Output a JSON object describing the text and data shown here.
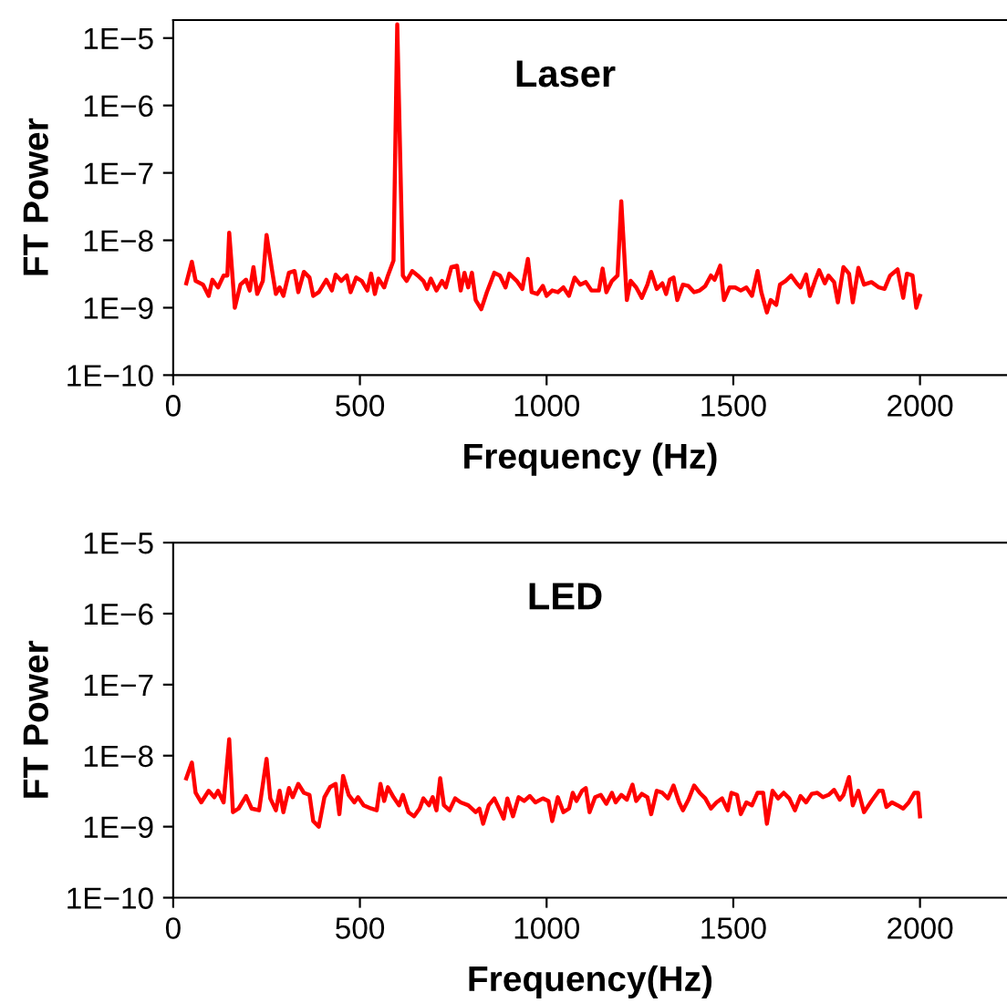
{
  "chart_data": [
    {
      "type": "line",
      "title": "Laser",
      "xlabel": "Frequency (Hz)",
      "ylabel": "FT Power",
      "log": true,
      "grid": false,
      "legend": false,
      "marker": "none",
      "line_style": "solid",
      "xlim": [
        0,
        2233
      ],
      "xticks": [
        0,
        500,
        1000,
        1500,
        2000
      ],
      "ylim": [
        1e-10,
        1.85e-05
      ],
      "yticks": [
        {
          "value": 1e-10,
          "label": "1E−10"
        },
        {
          "value": 1e-09,
          "label": "1E−9"
        },
        {
          "value": 1e-08,
          "label": "1E−8"
        },
        {
          "value": 1e-07,
          "label": "1E−7"
        },
        {
          "value": 1e-06,
          "label": "1E−6"
        },
        {
          "value": 1e-05,
          "label": "1E−5"
        }
      ],
      "series": [
        {
          "color": "#ff0000",
          "x": [
            35,
            50,
            60,
            80,
            95,
            105,
            120,
            135,
            145,
            150,
            165,
            180,
            195,
            205,
            215,
            225,
            240,
            250,
            265,
            275,
            285,
            295,
            310,
            325,
            335,
            350,
            365,
            375,
            390,
            410,
            425,
            435,
            450,
            465,
            475,
            490,
            505,
            520,
            530,
            540,
            550,
            565,
            575,
            590,
            600,
            615,
            625,
            640,
            655,
            670,
            680,
            690,
            705,
            720,
            730,
            745,
            760,
            770,
            780,
            790,
            800,
            810,
            825,
            840,
            860,
            875,
            890,
            900,
            920,
            935,
            950,
            960,
            975,
            990,
            1000,
            1015,
            1030,
            1045,
            1060,
            1075,
            1090,
            1105,
            1120,
            1140,
            1150,
            1160,
            1175,
            1190,
            1200,
            1215,
            1225,
            1240,
            1255,
            1270,
            1280,
            1295,
            1310,
            1320,
            1330,
            1340,
            1350,
            1365,
            1380,
            1395,
            1410,
            1425,
            1440,
            1450,
            1465,
            1475,
            1490,
            1505,
            1520,
            1535,
            1550,
            1565,
            1575,
            1590,
            1600,
            1615,
            1625,
            1640,
            1655,
            1670,
            1680,
            1695,
            1705,
            1720,
            1730,
            1745,
            1755,
            1770,
            1780,
            1795,
            1810,
            1820,
            1835,
            1850,
            1870,
            1890,
            1905,
            1920,
            1940,
            1955,
            1965,
            1980,
            1990,
            2000
          ],
          "values": [
            2.3e-09,
            4.8e-09,
            2.5e-09,
            2.2e-09,
            1.5e-09,
            2.6e-09,
            2e-09,
            3e-09,
            3e-09,
            1.3e-08,
            1e-09,
            2.2e-09,
            2.6e-09,
            1.8e-09,
            4e-09,
            1.6e-09,
            2.5e-09,
            1.2e-08,
            3.5e-09,
            1.6e-09,
            2e-09,
            1.5e-09,
            3.3e-09,
            3.5e-09,
            1.7e-09,
            3.4e-09,
            2.8e-09,
            1.5e-09,
            1.7e-09,
            2.6e-09,
            1.8e-09,
            3.1e-09,
            2.5e-09,
            3e-09,
            1.7e-09,
            2.8e-09,
            2.5e-09,
            1.8e-09,
            3.2e-09,
            1.6e-09,
            2.7e-09,
            2e-09,
            3e-09,
            5e-09,
            1.6e-05,
            3e-09,
            2.5e-09,
            3.5e-09,
            3e-09,
            2.5e-09,
            1.9e-09,
            2.7e-09,
            1.8e-09,
            2.5e-09,
            2e-09,
            4e-09,
            4.2e-09,
            1.8e-09,
            3.3e-09,
            2e-09,
            3.3e-09,
            1.3e-09,
            9.5e-10,
            1.7e-09,
            3.3e-09,
            3e-09,
            2e-09,
            3.2e-09,
            2.5e-09,
            1.9e-09,
            5.3e-09,
            1.7e-09,
            1.6e-09,
            2.1e-09,
            1.5e-09,
            1.8e-09,
            1.7e-09,
            2e-09,
            1.5e-09,
            2.8e-09,
            2.2e-09,
            2.4e-09,
            1.8e-09,
            1.8e-09,
            3.8e-09,
            1.7e-09,
            2.5e-09,
            3e-09,
            3.8e-08,
            1.3e-09,
            2.5e-09,
            2e-09,
            1.4e-09,
            2.2e-09,
            3.4e-09,
            1.9e-09,
            2.3e-09,
            1.6e-09,
            2.6e-09,
            2.8e-09,
            1.3e-09,
            2.2e-09,
            2.1e-09,
            1.7e-09,
            1.8e-09,
            2.1e-09,
            3e-09,
            2.6e-09,
            4.2e-09,
            1.3e-09,
            2e-09,
            2e-09,
            1.8e-09,
            2e-09,
            1.5e-09,
            3.5e-09,
            1.7e-09,
            8.5e-10,
            1.3e-09,
            1.1e-09,
            2.2e-09,
            2.5e-09,
            3e-09,
            2.3e-09,
            2e-09,
            3.1e-09,
            1.5e-09,
            2.6e-09,
            3.6e-09,
            2.3e-09,
            3e-09,
            2.4e-09,
            1.2e-09,
            4e-09,
            3.2e-09,
            1.2e-09,
            3.9e-09,
            2.2e-09,
            2.4e-09,
            2e-09,
            1.9e-09,
            3e-09,
            3.7e-09,
            1.4e-09,
            3.2e-09,
            3e-09,
            1e-09,
            1.5e-09
          ]
        }
      ]
    },
    {
      "type": "line",
      "title": "LED",
      "xlabel": "Frequency(Hz)",
      "ylabel": "FT Power",
      "log": true,
      "grid": false,
      "legend": false,
      "marker": "none",
      "line_style": "solid",
      "xlim": [
        0,
        2233
      ],
      "xticks": [
        0,
        500,
        1000,
        1500,
        2000
      ],
      "ylim": [
        1e-10,
        1e-05
      ],
      "yticks": [
        {
          "value": 1e-10,
          "label": "1E−10"
        },
        {
          "value": 1e-09,
          "label": "1E−9"
        },
        {
          "value": 1e-08,
          "label": "1E−8"
        },
        {
          "value": 1e-07,
          "label": "1E−7"
        },
        {
          "value": 1e-06,
          "label": "1E−6"
        },
        {
          "value": 1e-05,
          "label": "1E−5"
        }
      ],
      "series": [
        {
          "color": "#ff0000",
          "x": [
            35,
            50,
            60,
            75,
            95,
            110,
            120,
            135,
            150,
            160,
            175,
            195,
            210,
            230,
            250,
            260,
            275,
            285,
            295,
            310,
            320,
            335,
            350,
            365,
            375,
            390,
            405,
            420,
            435,
            445,
            455,
            470,
            485,
            495,
            510,
            530,
            545,
            555,
            565,
            575,
            590,
            605,
            615,
            630,
            645,
            660,
            670,
            685,
            695,
            705,
            715,
            725,
            740,
            755,
            770,
            790,
            810,
            820,
            830,
            845,
            860,
            875,
            885,
            895,
            910,
            925,
            940,
            955,
            970,
            990,
            1005,
            1015,
            1030,
            1045,
            1060,
            1070,
            1080,
            1095,
            1105,
            1115,
            1130,
            1145,
            1160,
            1175,
            1185,
            1200,
            1215,
            1230,
            1240,
            1255,
            1270,
            1280,
            1295,
            1310,
            1325,
            1340,
            1355,
            1365,
            1380,
            1395,
            1410,
            1425,
            1440,
            1455,
            1470,
            1485,
            1495,
            1510,
            1520,
            1535,
            1550,
            1565,
            1580,
            1590,
            1605,
            1620,
            1635,
            1650,
            1665,
            1680,
            1695,
            1710,
            1725,
            1740,
            1755,
            1770,
            1785,
            1795,
            1810,
            1820,
            1835,
            1850,
            1870,
            1890,
            1900,
            1910,
            1925,
            1940,
            1955,
            1970,
            1985,
            1995,
            2000
          ],
          "values": [
            4.8e-09,
            8e-09,
            3e-09,
            2.2e-09,
            3.2e-09,
            2.6e-09,
            3.2e-09,
            2.2e-09,
            1.7e-08,
            1.6e-09,
            1.8e-09,
            2.7e-09,
            1.8e-09,
            1.7e-09,
            9e-09,
            2.5e-09,
            1.7e-09,
            3.2e-09,
            1.6e-09,
            3.5e-09,
            2.6e-09,
            4e-09,
            3e-09,
            2.8e-09,
            1.2e-09,
            1e-09,
            2.6e-09,
            3.6e-09,
            4e-09,
            1.5e-09,
            5.2e-09,
            2.8e-09,
            2.2e-09,
            2.6e-09,
            2e-09,
            1.8e-09,
            1.7e-09,
            4e-09,
            2.3e-09,
            3.6e-09,
            2.6e-09,
            2e-09,
            2.8e-09,
            1.6e-09,
            1.4e-09,
            1.8e-09,
            2.5e-09,
            2e-09,
            2.6e-09,
            1.7e-09,
            4.8e-09,
            2e-09,
            1.7e-09,
            2.5e-09,
            2.2e-09,
            2e-09,
            1.6e-09,
            1.8e-09,
            1.1e-09,
            2e-09,
            2.5e-09,
            1.7e-09,
            1.3e-09,
            2.5e-09,
            1.4e-09,
            2.6e-09,
            2.3e-09,
            2.7e-09,
            2.2e-09,
            2.5e-09,
            2.3e-09,
            1.2e-09,
            2.6e-09,
            1.6e-09,
            1.8e-09,
            3e-09,
            2.3e-09,
            3.2e-09,
            3.5e-09,
            1.6e-09,
            2.6e-09,
            2.8e-09,
            2.1e-09,
            3e-09,
            2.2e-09,
            2.8e-09,
            2.4e-09,
            3.9e-09,
            2.3e-09,
            2.9e-09,
            2.6e-09,
            1.5e-09,
            3.2e-09,
            3e-09,
            2.5e-09,
            3.8e-09,
            2.2e-09,
            1.7e-09,
            2.4e-09,
            3.8e-09,
            3e-09,
            2.5e-09,
            1.8e-09,
            2.2e-09,
            2.5e-09,
            1.7e-09,
            3e-09,
            2.8e-09,
            1.5e-09,
            2.2e-09,
            2e-09,
            3e-09,
            3e-09,
            1.1e-09,
            3.2e-09,
            2.5e-09,
            3e-09,
            2.5e-09,
            1.7e-09,
            2.7e-09,
            2.2e-09,
            2.9e-09,
            3e-09,
            2.6e-09,
            2.8e-09,
            3.3e-09,
            2.4e-09,
            2.8e-09,
            5e-09,
            2e-09,
            3.2e-09,
            1.6e-09,
            2.3e-09,
            3.2e-09,
            3.2e-09,
            1.9e-09,
            2.2e-09,
            2e-09,
            1.8e-09,
            2.2e-09,
            3e-09,
            3e-09,
            1.4e-09
          ]
        }
      ]
    }
  ]
}
